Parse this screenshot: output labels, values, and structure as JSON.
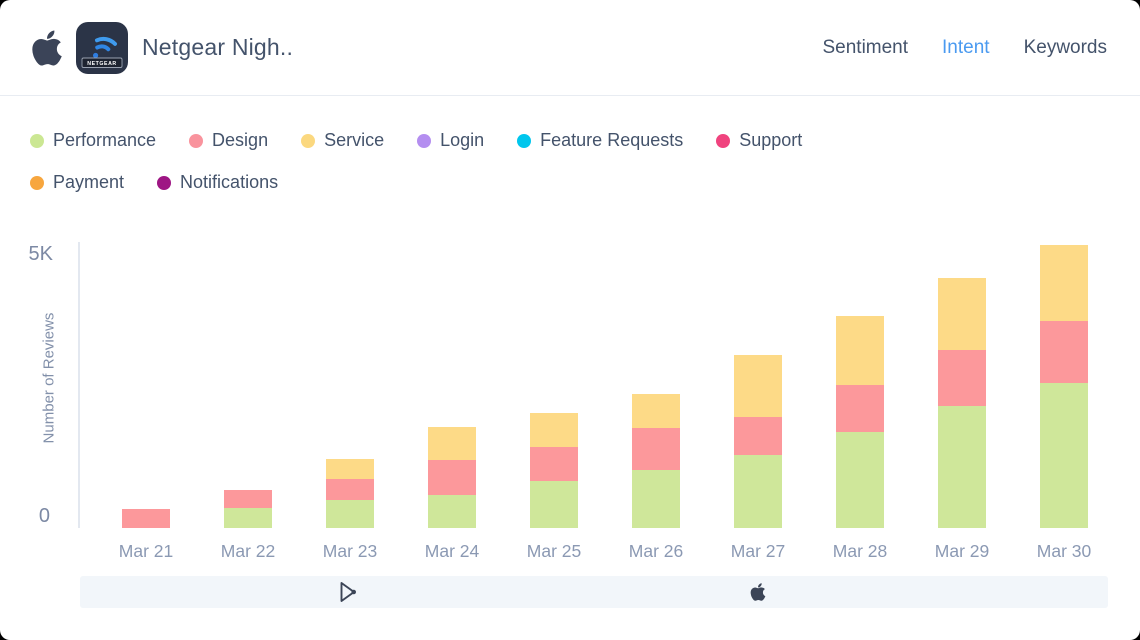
{
  "header": {
    "title": "Netgear Nigh..",
    "nav": [
      {
        "label": "Sentiment",
        "active": false
      },
      {
        "label": "Intent",
        "active": true
      },
      {
        "label": "Keywords",
        "active": false
      }
    ],
    "accent_color": "#4a9af0",
    "app_icon_label": "NETGEAR"
  },
  "legend": [
    {
      "label": "Performance",
      "color": "#cbe793"
    },
    {
      "label": "Design",
      "color": "#f9939d"
    },
    {
      "label": "Service",
      "color": "#fbd87f"
    },
    {
      "label": "Login",
      "color": "#b48ef0"
    },
    {
      "label": "Feature Requests",
      "color": "#00c6ed"
    },
    {
      "label": "Support",
      "color": "#f0437e"
    },
    {
      "label": "Payment",
      "color": "#f7a63e"
    },
    {
      "label": "Notifications",
      "color": "#9e1684"
    }
  ],
  "chart_data": {
    "type": "bar",
    "stacked": true,
    "categories": [
      "Mar 21",
      "Mar 22",
      "Mar 23",
      "Mar 24",
      "Mar 25",
      "Mar 26",
      "Mar 27",
      "Mar 28",
      "Mar 29",
      "Mar 30"
    ],
    "series": [
      {
        "name": "Performance",
        "color": "#cfe79a",
        "values": [
          0,
          360,
          520,
          610,
          870,
          1070,
          1340,
          1760,
          2230,
          2650
        ]
      },
      {
        "name": "Design",
        "color": "#fc989b",
        "values": [
          350,
          340,
          370,
          640,
          620,
          760,
          700,
          860,
          1030,
          1140
        ]
      },
      {
        "name": "Service",
        "color": "#fdda87",
        "values": [
          0,
          0,
          370,
          610,
          620,
          620,
          1130,
          1270,
          1320,
          1400
        ]
      },
      {
        "name": "Login",
        "color": "#b48ef0",
        "values": [
          0,
          0,
          0,
          0,
          0,
          0,
          0,
          0,
          0,
          0
        ]
      },
      {
        "name": "Feature Requests",
        "color": "#00c6ed",
        "values": [
          0,
          0,
          0,
          0,
          0,
          0,
          0,
          0,
          0,
          0
        ]
      },
      {
        "name": "Support",
        "color": "#f0437e",
        "values": [
          0,
          0,
          0,
          0,
          0,
          0,
          0,
          0,
          0,
          0
        ]
      },
      {
        "name": "Payment",
        "color": "#f7a63e",
        "values": [
          0,
          0,
          0,
          0,
          0,
          0,
          0,
          0,
          0,
          0
        ]
      },
      {
        "name": "Notifications",
        "color": "#9e1684",
        "values": [
          0,
          0,
          0,
          0,
          0,
          0,
          0,
          0,
          0,
          0
        ]
      }
    ],
    "title": "",
    "xlabel": "",
    "ylabel": "Number of Reviews",
    "ylim": [
      0,
      5000
    ],
    "yticks": [
      "5K",
      "0"
    ],
    "grid": false,
    "legend_position": "top"
  },
  "footer": {
    "icons": [
      "google-play-icon",
      "apple-icon"
    ]
  }
}
